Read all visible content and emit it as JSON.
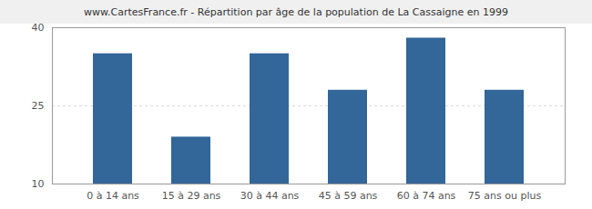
{
  "chart_data": {
    "type": "bar",
    "title": "www.CartesFrance.fr - Répartition par âge de la population de La Cassaigne en 1999",
    "categories": [
      "0 à 14 ans",
      "15 à 29 ans",
      "30 à 44 ans",
      "45 à 59 ans",
      "60 à 74 ans",
      "75 ans ou plus"
    ],
    "values": [
      35,
      19,
      35,
      28,
      38,
      28
    ],
    "color": "#336699",
    "ylim": [
      10,
      40
    ],
    "yticks": [
      10,
      25,
      40
    ],
    "grid": true
  }
}
